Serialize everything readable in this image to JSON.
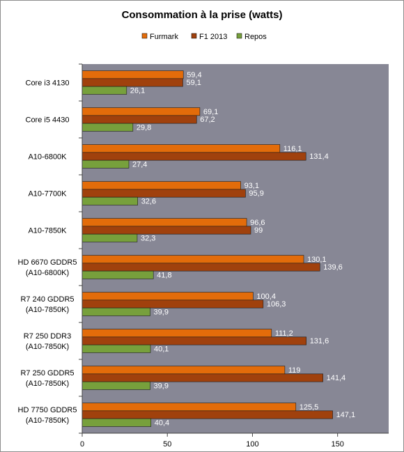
{
  "chart_data": {
    "type": "bar",
    "orientation": "horizontal",
    "title": "Consommation à la prise (watts)",
    "legend_position": "top",
    "categories": [
      [
        "Core i3 4130"
      ],
      [
        "Core i5 4430"
      ],
      [
        "A10-6800K"
      ],
      [
        "A10-7700K"
      ],
      [
        "A10-7850K"
      ],
      [
        "HD 6670 GDDR5",
        "(A10-6800K)"
      ],
      [
        "R7 240 GDDR5",
        "(A10-7850K)"
      ],
      [
        "R7 250 DDR3",
        "(A10-7850K)"
      ],
      [
        "R7 250 GDDR5",
        "(A10-7850K)"
      ],
      [
        "HD 7750 GDDR5",
        "(A10-7850K)"
      ]
    ],
    "series": [
      {
        "name": "Furmark",
        "color": "#e36c0a",
        "values": [
          59.4,
          69.1,
          116.1,
          93.1,
          96.6,
          130.1,
          100.4,
          111.2,
          119,
          125.5
        ],
        "labels": [
          "59,4",
          "69,1",
          "116,1",
          "93,1",
          "96,6",
          "130,1",
          "100,4",
          "111,2",
          "119",
          "125,5"
        ]
      },
      {
        "name": "F1 2013",
        "color": "#a0410d",
        "values": [
          59.1,
          67.2,
          131.4,
          95.9,
          99,
          139.6,
          106.3,
          131.6,
          141.4,
          147.1
        ],
        "labels": [
          "59,1",
          "67,2",
          "131,4",
          "95,9",
          "99",
          "139,6",
          "106,3",
          "131,6",
          "141,4",
          "147,1"
        ]
      },
      {
        "name": "Repos",
        "color": "#77a03c",
        "values": [
          26.1,
          29.8,
          27.4,
          32.6,
          32.3,
          41.8,
          39.9,
          40.1,
          39.9,
          40.4
        ],
        "labels": [
          "26,1",
          "29,8",
          "27,4",
          "32,6",
          "32,3",
          "41,8",
          "39,9",
          "40,1",
          "39,9",
          "40,4"
        ]
      }
    ],
    "x_axis": {
      "min": 0,
      "max": 180,
      "ticks": [
        0,
        50,
        100,
        150
      ],
      "tick_labels": [
        "0",
        "50",
        "100",
        "150"
      ]
    },
    "plot_background": "#878795",
    "grid": false
  }
}
